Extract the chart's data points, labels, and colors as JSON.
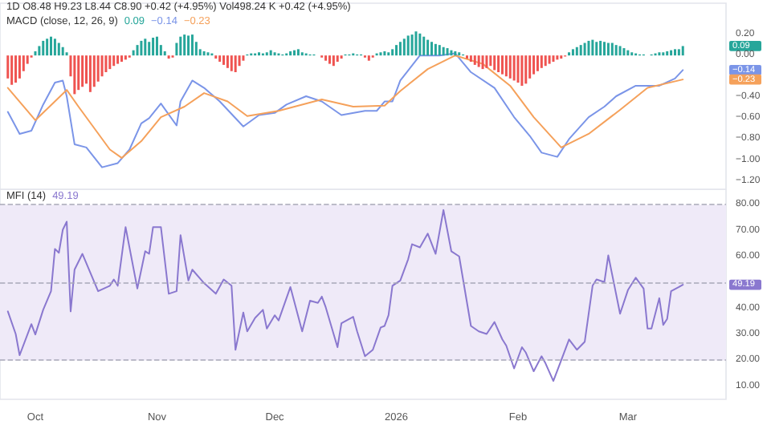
{
  "chart_data": [
    {
      "type": "bar",
      "subtitle": "1D  O8.48 H9.23 L8.44 C8.90 +0.42 (+4.95%)  Vol498.24 K  +0.42 (+4.95%)",
      "title": "MACD (close, 12, 26, 9)",
      "x": [
        "2025-09-24",
        "2025-09-25",
        "2025-09-26",
        "2025-09-27",
        "2025-09-28",
        "2025-09-29",
        "2025-09-30",
        "2025-10-01",
        "2025-10-02",
        "2025-10-03",
        "2025-10-04",
        "2025-10-05",
        "2025-10-06",
        "2025-10-07",
        "2025-10-08",
        "2025-10-09",
        "2025-10-10",
        "2025-10-11",
        "2025-10-12",
        "2025-10-13",
        "2025-10-14",
        "2025-10-15",
        "2025-10-16",
        "2025-10-17",
        "2025-10-18",
        "2025-10-19",
        "2025-10-20",
        "2025-10-21",
        "2025-10-22",
        "2025-10-23",
        "2025-10-24",
        "2025-10-25",
        "2025-10-26",
        "2025-10-27",
        "2025-10-28",
        "2025-10-29",
        "2025-10-30",
        "2025-10-31",
        "2025-11-01",
        "2025-11-02",
        "2025-11-03",
        "2025-11-04",
        "2025-11-05",
        "2025-11-06",
        "2025-11-07",
        "2025-11-08",
        "2025-11-09",
        "2025-11-10",
        "2025-11-11",
        "2025-11-12",
        "2025-11-13",
        "2025-11-14",
        "2025-11-15",
        "2025-11-16",
        "2025-11-17",
        "2025-11-18",
        "2025-11-19",
        "2025-11-20",
        "2025-11-21",
        "2025-11-22",
        "2025-11-23",
        "2025-11-24",
        "2025-11-25",
        "2025-11-26",
        "2025-11-27",
        "2025-11-28",
        "2025-11-29",
        "2025-11-30",
        "2025-12-01",
        "2025-12-02",
        "2025-12-03",
        "2025-12-04",
        "2025-12-05",
        "2025-12-06",
        "2025-12-07",
        "2025-12-08",
        "2025-12-09",
        "2025-12-10",
        "2025-12-11",
        "2025-12-12",
        "2025-12-13",
        "2025-12-14",
        "2025-12-15",
        "2025-12-16",
        "2025-12-17",
        "2025-12-18",
        "2025-12-19",
        "2025-12-20",
        "2025-12-21",
        "2025-12-22",
        "2025-12-23",
        "2025-12-24",
        "2025-12-25",
        "2025-12-26",
        "2025-12-27",
        "2025-12-28",
        "2025-12-29",
        "2025-12-30",
        "2025-12-31",
        "2026-01-01",
        "2026-01-02",
        "2026-01-03",
        "2026-01-04",
        "2026-01-05",
        "2026-01-06",
        "2026-01-07",
        "2026-01-08",
        "2026-01-09",
        "2026-01-10",
        "2026-01-11",
        "2026-01-12",
        "2026-01-13",
        "2026-01-14",
        "2026-01-15",
        "2026-01-16",
        "2026-01-17",
        "2026-01-18",
        "2026-01-19",
        "2026-01-20",
        "2026-01-21",
        "2026-01-22",
        "2026-01-23",
        "2026-01-24",
        "2026-01-25",
        "2026-01-26",
        "2026-01-27",
        "2026-01-28",
        "2026-01-29",
        "2026-01-30",
        "2026-01-31",
        "2026-02-01",
        "2026-02-02",
        "2026-02-03",
        "2026-02-04",
        "2026-02-05",
        "2026-02-06",
        "2026-02-07",
        "2026-02-08",
        "2026-02-09",
        "2026-02-10",
        "2026-02-11",
        "2026-02-12",
        "2026-02-13",
        "2026-02-14",
        "2026-02-15",
        "2026-02-16",
        "2026-02-17",
        "2026-02-18",
        "2026-02-19",
        "2026-02-20",
        "2026-02-21",
        "2026-02-22",
        "2026-02-23",
        "2026-02-24",
        "2026-02-25",
        "2026-02-26",
        "2026-02-27",
        "2026-02-28",
        "2026-03-01",
        "2026-03-02",
        "2026-03-03",
        "2026-03-04",
        "2026-03-05",
        "2026-03-06",
        "2026-03-07",
        "2026-03-08",
        "2026-03-09",
        "2026-03-10",
        "2026-03-11",
        "2026-03-12",
        "2026-03-13",
        "2026-03-14",
        "2026-03-15"
      ],
      "series": [
        {
          "color": "#26a69a",
          "values": [
            null,
            null,
            null,
            null,
            null,
            null,
            null,
            0.04,
            0.09,
            0.14,
            0.16,
            0.18,
            0.16,
            0.12,
            0.08,
            0.03,
            null,
            null,
            null,
            null,
            null,
            null,
            null,
            null,
            null,
            null,
            null,
            null,
            null,
            null,
            null,
            null,
            0.05,
            0.1,
            0.14,
            0.16,
            0.13,
            0.17,
            0.18,
            0.1,
            0.04,
            null,
            null,
            0.12,
            0.18,
            0.2,
            0.19,
            0.2,
            0.13,
            0.06,
            0.04,
            0.03,
            0.02,
            null,
            null,
            null,
            null,
            null,
            null,
            null,
            null,
            0.01,
            0.02,
            0.02,
            0.03,
            0.02,
            0.03,
            0.05,
            0.03,
            0.02,
            0.01,
            0.02,
            0.04,
            0.05,
            0.06,
            0.03,
            0.02,
            0.01,
            0.01,
            0,
            null,
            null,
            null,
            null,
            null,
            null,
            0.01,
            0.01,
            0.02,
            0.01,
            0.01,
            null,
            null,
            null,
            0.02,
            0.03,
            0.04,
            0.03,
            0.06,
            0.1,
            0.13,
            0.16,
            0.19,
            0.2,
            0.23,
            0.21,
            0.18,
            0.15,
            0.13,
            0.11,
            0.1,
            0.08,
            0.07,
            0.05,
            0.04,
            0.03,
            0.01,
            null,
            null,
            null,
            null,
            null,
            null,
            null,
            null,
            null,
            null,
            null,
            null,
            null,
            null,
            null,
            null,
            null,
            null,
            null,
            null,
            null,
            null,
            null,
            null,
            null,
            null,
            0.03,
            0.06,
            0.08,
            0.1,
            0.12,
            0.14,
            0.15,
            0.13,
            0.14,
            0.13,
            0.12,
            0.12,
            0.1,
            0.09,
            0.07,
            0.05,
            0.03,
            0.02,
            0.01,
            0.01,
            0,
            0.01,
            0.02,
            0.03,
            0.03,
            0.04,
            0.05,
            0.06,
            0.06,
            0.09
          ]
        },
        {
          "type": "line",
          "color": "#7b95e8",
          "x": [
            "2025-09-24",
            "2025-09-27",
            "2025-09-30",
            "2025-10-03",
            "2025-10-06",
            "2025-10-08",
            "2025-10-09",
            "2025-10-11",
            "2025-10-14",
            "2025-10-18",
            "2025-10-22",
            "2025-10-25",
            "2025-10-28",
            "2025-10-30",
            "2025-11-02",
            "2025-11-06",
            "2025-11-07",
            "2025-11-10",
            "2025-11-13",
            "2025-11-17",
            "2025-11-23",
            "2025-11-27",
            "2025-12-01",
            "2025-12-04",
            "2025-12-09",
            "2025-12-13",
            "2025-12-18",
            "2025-12-24",
            "2025-12-27",
            "2025-12-29",
            "2025-12-31",
            "2026-01-02",
            "2026-01-07",
            "2026-01-12",
            "2026-01-16",
            "2026-01-20",
            "2026-01-26",
            "2026-01-31",
            "2026-02-04",
            "2026-02-07",
            "2026-02-11",
            "2026-02-14",
            "2026-02-19",
            "2026-02-23",
            "2026-02-26",
            "2026-03-03",
            "2026-03-09",
            "2026-03-13",
            "2026-03-15"
          ],
          "values": [
            -0.54,
            -0.75,
            -0.72,
            -0.47,
            -0.26,
            -0.24,
            -0.39,
            -0.85,
            -0.88,
            -1.07,
            -1.03,
            -0.9,
            -0.65,
            -0.6,
            -0.46,
            -0.67,
            -0.44,
            -0.24,
            -0.31,
            -0.44,
            -0.68,
            -0.57,
            -0.55,
            -0.47,
            -0.39,
            -0.44,
            -0.57,
            -0.53,
            -0.53,
            -0.44,
            -0.44,
            -0.24,
            0,
            0,
            0.02,
            -0.16,
            -0.31,
            -0.59,
            -0.77,
            -0.93,
            -0.97,
            -0.8,
            -0.59,
            -0.49,
            -0.39,
            -0.29,
            -0.29,
            -0.22,
            -0.14
          ]
        },
        {
          "type": "line",
          "color": "#f5a15b",
          "x": [
            "2025-09-24",
            "2025-10-01",
            "2025-10-09",
            "2025-10-12",
            "2025-10-20",
            "2025-10-23",
            "2025-10-28",
            "2025-11-02",
            "2025-11-08",
            "2025-11-13",
            "2025-11-19",
            "2025-11-24",
            "2025-12-02",
            "2025-12-13",
            "2025-12-21",
            "2025-12-29",
            "2026-01-02",
            "2026-01-09",
            "2026-01-16",
            "2026-01-23",
            "2026-01-30",
            "2026-02-05",
            "2026-02-12",
            "2026-02-19",
            "2026-02-27",
            "2026-03-06",
            "2026-03-15"
          ],
          "values": [
            -0.31,
            -0.62,
            -0.33,
            -0.49,
            -0.9,
            -0.98,
            -0.82,
            -0.59,
            -0.49,
            -0.36,
            -0.44,
            -0.58,
            -0.53,
            -0.42,
            -0.49,
            -0.48,
            -0.34,
            -0.13,
            0,
            -0.08,
            -0.29,
            -0.59,
            -0.88,
            -0.75,
            -0.52,
            -0.31,
            -0.23
          ]
        },
        {
          "color": "#ef5350",
          "values": [
            -0.22,
            -0.28,
            -0.26,
            -0.22,
            -0.15,
            -0.08,
            -0.02,
            null,
            null,
            null,
            null,
            null,
            null,
            null,
            null,
            null,
            -0.2,
            -0.37,
            -0.33,
            -0.3,
            -0.27,
            -0.35,
            -0.3,
            -0.25,
            -0.2,
            -0.16,
            -0.13,
            -0.1,
            -0.08,
            -0.06,
            -0.04,
            -0.02,
            null,
            null,
            null,
            null,
            null,
            null,
            null,
            null,
            null,
            -0.03,
            -0.02,
            null,
            null,
            null,
            null,
            null,
            null,
            null,
            null,
            null,
            null,
            -0.03,
            -0.06,
            -0.09,
            -0.12,
            -0.15,
            -0.16,
            -0.1,
            -0.05,
            null,
            null,
            null,
            null,
            null,
            null,
            null,
            null,
            null,
            null,
            null,
            null,
            null,
            null,
            null,
            null,
            null,
            null,
            null,
            -0.02,
            -0.05,
            -0.08,
            -0.1,
            -0.06,
            -0.03,
            null,
            null,
            null,
            null,
            null,
            -0.02,
            -0.05,
            -0.02,
            null,
            null,
            null,
            null,
            null,
            null,
            null,
            null,
            null,
            null,
            null,
            null,
            null,
            null,
            null,
            null,
            null,
            null,
            null,
            null,
            null,
            null,
            null,
            -0.03,
            -0.06,
            -0.09,
            -0.11,
            -0.13,
            -0.12,
            -0.1,
            -0.14,
            -0.16,
            -0.18,
            -0.2,
            -0.22,
            -0.24,
            -0.26,
            -0.29,
            -0.27,
            -0.22,
            -0.18,
            -0.15,
            -0.12,
            -0.1,
            -0.08,
            -0.06,
            -0.04,
            -0.03,
            -0.01,
            null,
            null,
            null,
            null,
            null,
            null,
            null,
            null,
            null,
            null,
            null,
            null,
            null,
            null,
            null,
            null,
            null,
            null,
            null,
            null,
            null,
            null,
            null,
            null,
            null,
            null,
            null,
            null,
            null,
            null
          ]
        }
      ],
      "annotations": [
        "0.09",
        "−0.14",
        "−0.23"
      ],
      "xlim": [
        "2025-09-22",
        "2026-03-26"
      ],
      "ylim": [
        -1.28,
        0.5
      ],
      "yticks": [
        {
          "value": -1.2,
          "label": "−1.20"
        },
        {
          "value": -1,
          "label": "−1.00"
        },
        {
          "value": -0.8,
          "label": "−0.80"
        },
        {
          "value": -0.6,
          "label": "−0.60"
        },
        {
          "value": -0.4,
          "label": "−0.40"
        },
        {
          "value": 0,
          "label": "0.00"
        },
        {
          "value": 0.2,
          "label": "0.20"
        }
      ],
      "tick_labels": "y",
      "grid": false,
      "marker": "none"
    },
    {
      "type": "line",
      "title": "MFI (14)",
      "x": [
        "2025-09-24",
        "2025-09-26",
        "2025-09-27",
        "2025-09-30",
        "2025-10-01",
        "2025-10-03",
        "2025-10-05",
        "2025-10-06",
        "2025-10-07",
        "2025-10-08",
        "2025-10-09",
        "2025-10-10",
        "2025-10-11",
        "2025-10-13",
        "2025-10-17",
        "2025-10-20",
        "2025-10-21",
        "2025-10-22",
        "2025-10-24",
        "2025-10-27",
        "2025-10-29",
        "2025-10-30",
        "2025-10-31",
        "2025-11-02",
        "2025-11-04",
        "2025-11-06",
        "2025-11-07",
        "2025-11-09",
        "2025-11-10",
        "2025-11-13",
        "2025-11-16",
        "2025-11-18",
        "2025-11-20",
        "2025-11-21",
        "2025-11-23",
        "2025-11-24",
        "2025-11-26",
        "2025-11-28",
        "2025-11-29",
        "2025-12-01",
        "2025-12-02",
        "2025-12-05",
        "2025-12-08",
        "2025-12-10",
        "2025-12-12",
        "2025-12-13",
        "2025-12-14",
        "2025-12-17",
        "2025-12-18",
        "2025-12-21",
        "2025-12-22",
        "2025-12-24",
        "2025-12-26",
        "2025-12-28",
        "2025-12-29",
        "2025-12-30",
        "2025-12-31",
        "2026-01-02",
        "2026-01-04",
        "2026-01-05",
        "2026-01-07",
        "2026-01-09",
        "2026-01-11",
        "2026-01-13",
        "2026-01-15",
        "2026-01-17",
        "2026-01-20",
        "2026-01-22",
        "2026-01-24",
        "2026-01-26",
        "2026-01-28",
        "2026-01-29",
        "2026-01-31",
        "2026-02-02",
        "2026-02-03",
        "2026-02-05",
        "2026-02-07",
        "2026-02-08",
        "2026-02-10",
        "2026-02-12",
        "2026-02-14",
        "2026-02-16",
        "2026-02-18",
        "2026-02-20",
        "2026-02-21",
        "2026-02-23",
        "2026-02-24",
        "2026-02-27",
        "2026-03-01",
        "2026-03-03",
        "2026-03-05",
        "2026-03-06",
        "2026-03-07",
        "2026-03-09",
        "2026-03-10",
        "2026-03-11",
        "2026-03-12",
        "2026-03-14",
        "2026-03-15"
      ],
      "series": [
        {
          "color": "#8a78cf",
          "values": [
            38.9,
            30.2,
            22.0,
            34,
            30,
            39.5,
            46.7,
            63,
            61.5,
            70.4,
            73.5,
            38.9,
            55,
            61.1,
            46.7,
            48.8,
            51.2,
            48.8,
            71.4,
            47.7,
            62.1,
            61.1,
            71.4,
            71.4,
            45.7,
            46.7,
            68.3,
            50.8,
            55,
            49.8,
            45.7,
            51.2,
            48.8,
            24.1,
            38.5,
            31.2,
            36.4,
            39.5,
            32.3,
            37.4,
            35.4,
            48.3,
            31.2,
            43,
            42.2,
            44.6,
            40.5,
            25.1,
            34.3,
            36.8,
            31.2,
            21.6,
            24.1,
            32.7,
            33.3,
            37.4,
            48.8,
            50.8,
            59,
            64.8,
            63.6,
            68.9,
            61.1,
            78,
            62.1,
            60.1,
            33.3,
            31.2,
            30.2,
            34.8,
            28.1,
            25.7,
            16.9,
            25.1,
            23,
            15.8,
            21.6,
            18.9,
            12.1,
            20,
            28.1,
            24.1,
            27.2,
            48.8,
            51.2,
            50.2,
            60.5,
            38,
            47.1,
            51.9,
            47.7,
            32.3,
            32.3,
            44,
            33.7,
            36,
            46.7,
            48.3,
            49.19
          ]
        }
      ],
      "annotations": [
        "49.19"
      ],
      "bands": [
        {
          "axis": "y",
          "from": 20,
          "to": 80,
          "color": "#efeaf8"
        }
      ],
      "ref_lines": [
        {
          "axis": "y",
          "value": 80,
          "color": "#a8a8b8",
          "line_style": "dashed"
        },
        {
          "axis": "y",
          "value": 50,
          "color": "#a8a8b8",
          "line_style": "dashed"
        },
        {
          "axis": "y",
          "value": 20,
          "color": "#a8a8b8",
          "line_style": "dashed"
        }
      ],
      "xlim": [
        "2025-09-22",
        "2026-03-26"
      ],
      "xticks": [
        {
          "value": "2025-10-01",
          "label": "Oct"
        },
        {
          "value": "2025-11-01",
          "label": "Nov"
        },
        {
          "value": "2025-12-01",
          "label": "Dec"
        },
        {
          "value": "2026-01-01",
          "label": "2026"
        },
        {
          "value": "2026-02-01",
          "label": "Feb"
        },
        {
          "value": "2026-03-01",
          "label": "Mar"
        }
      ],
      "ylim": [
        5,
        86
      ],
      "yticks": [
        {
          "value": 10,
          "label": "10.00"
        },
        {
          "value": 20,
          "label": "20.00"
        },
        {
          "value": 30,
          "label": "30.00"
        },
        {
          "value": 40,
          "label": "40.00"
        },
        {
          "value": 50,
          "label": null
        },
        {
          "value": 60,
          "label": "60.00"
        },
        {
          "value": 70,
          "label": "70.00"
        },
        {
          "value": 80,
          "label": "80.00"
        }
      ],
      "grid": false,
      "marker": "none"
    }
  ]
}
